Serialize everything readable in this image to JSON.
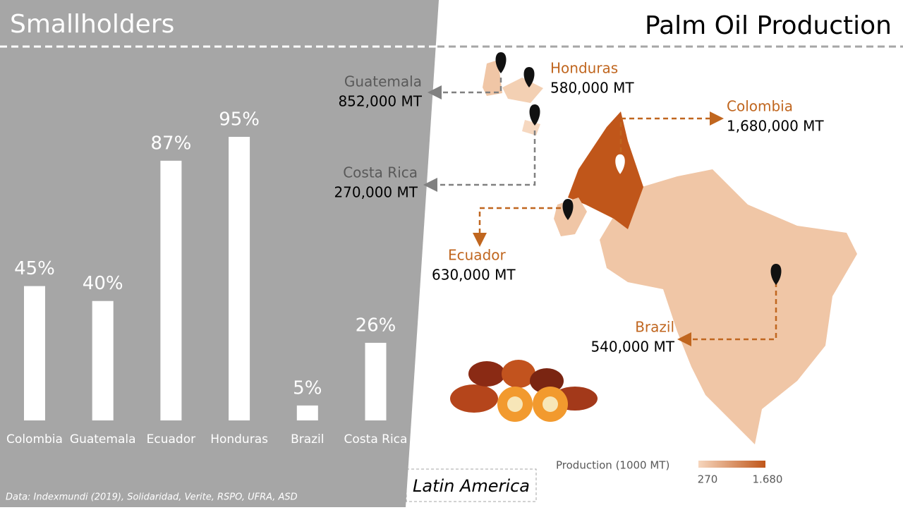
{
  "chart_data": {
    "type": "bar",
    "title": "Smallholders",
    "categories": [
      "Colombia",
      "Guatemala",
      "Ecuador",
      "Honduras",
      "Brazil",
      "Costa Rica"
    ],
    "values": [
      45,
      40,
      87,
      95,
      5,
      26
    ],
    "value_labels": [
      "45%",
      "40%",
      "87%",
      "95%",
      "5%",
      "26%"
    ],
    "color": "#ffffff"
  },
  "map": {
    "title": "Palm Oil Production",
    "region": "Latin America",
    "countries": [
      {
        "name": "Guatemala",
        "production": "852,000 MT"
      },
      {
        "name": "Honduras",
        "production": "580,000 MT"
      },
      {
        "name": "Colombia",
        "production": "1,680,000 MT"
      },
      {
        "name": "Costa Rica",
        "production": "270,000 MT"
      },
      {
        "name": "Ecuador",
        "production": "630,000 MT"
      },
      {
        "name": "Brazil",
        "production": "540,000 MT"
      }
    ],
    "legend": {
      "title": "Production (1000 MT)",
      "min": "270",
      "max": "1.680"
    }
  },
  "source": "Data: Indexmundi (2019), Solidaridad, Verite, RSPO, UFRA, ASD"
}
